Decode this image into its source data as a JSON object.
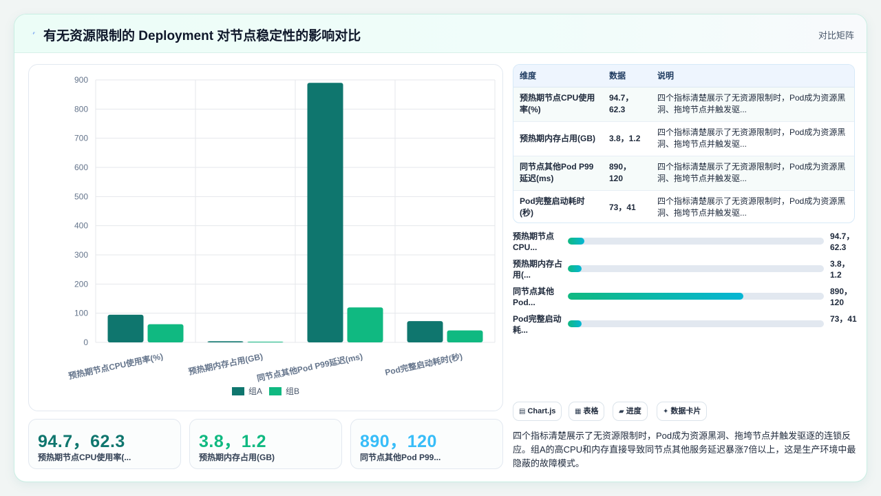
{
  "header": {
    "title": "有无资源限制的 Deployment 对节点稳定性的影响对比",
    "link": "对比矩阵",
    "icon": "lightning-icon"
  },
  "chart_data": {
    "type": "bar",
    "categories": [
      "预热期节点CPU使用率(%)",
      "预热期内存占用(GB)",
      "同节点其他Pod P99延迟(ms)",
      "Pod完整启动耗时(秒)"
    ],
    "series": [
      {
        "name": "组A",
        "values": [
          94.7,
          3.8,
          890,
          73
        ],
        "color": "#0f766e"
      },
      {
        "name": "组B",
        "values": [
          62.3,
          1.2,
          120,
          41
        ],
        "color": "#10b981"
      }
    ],
    "yticks": [
      "900",
      "800",
      "700",
      "600",
      "500",
      "400",
      "300",
      "200",
      "100",
      "0"
    ],
    "ylim": [
      0,
      900
    ],
    "grid": true,
    "legend": "bottom"
  },
  "kpis": [
    {
      "value": "94.7，62.3",
      "label": "预热期节点CPU使用率(...",
      "color": "#0f766e"
    },
    {
      "value": "3.8，1.2",
      "label": "预热期内存占用(GB)",
      "color": "#10b981"
    },
    {
      "value": "890，120",
      "label": "同节点其他Pod P99...",
      "color": "#38bdf8"
    }
  ],
  "table": {
    "headers": [
      "维度",
      "数据",
      "说明"
    ],
    "rows": [
      {
        "dim": "预热期节点CPU使用率(%)",
        "data": "94.7，62.3",
        "desc": "四个指标清楚展示了无资源限制时，Pod成为资源黑洞、拖垮节点并触发驱..."
      },
      {
        "dim": "预热期内存占用(GB)",
        "data": "3.8，1.2",
        "desc": "四个指标清楚展示了无资源限制时，Pod成为资源黑洞、拖垮节点并触发驱..."
      },
      {
        "dim": "同节点其他Pod P99延迟(ms)",
        "data": "890，120",
        "desc": "四个指标清楚展示了无资源限制时，Pod成为资源黑洞、拖垮节点并触发驱..."
      },
      {
        "dim": "Pod完整启动耗时(秒)",
        "data": "73，41",
        "desc": "四个指标清楚展示了无资源限制时，Pod成为资源黑洞、拖垮节点并触发驱..."
      }
    ]
  },
  "progress": [
    {
      "label": "预热期节点CPU...",
      "value": "94.7，62.3",
      "fraction": 0.065
    },
    {
      "label": "预热期内存占用(...",
      "value": "3.8，1.2",
      "fraction": 0.055
    },
    {
      "label": "同节点其他Pod...",
      "value": "890，120",
      "fraction": 0.685
    },
    {
      "label": "Pod完整启动耗...",
      "value": "73，41",
      "fraction": 0.055
    }
  ],
  "chips": [
    {
      "label": "Chart.js",
      "icon": "chart-icon",
      "glyph": "▤"
    },
    {
      "label": "表格",
      "icon": "table-icon",
      "glyph": "▦"
    },
    {
      "label": "进度",
      "icon": "progress-icon",
      "glyph": "▰"
    },
    {
      "label": "数据卡片",
      "icon": "sparkle-icon",
      "glyph": "✦"
    }
  ],
  "summary": "四个指标清楚展示了无资源限制时，Pod成为资源黑洞、拖垮节点并触发驱逐的连锁反应。组A的高CPU和内存直接导致同节点其他服务延迟暴涨7倍以上，这是生产环境中最隐蔽的故障模式。"
}
